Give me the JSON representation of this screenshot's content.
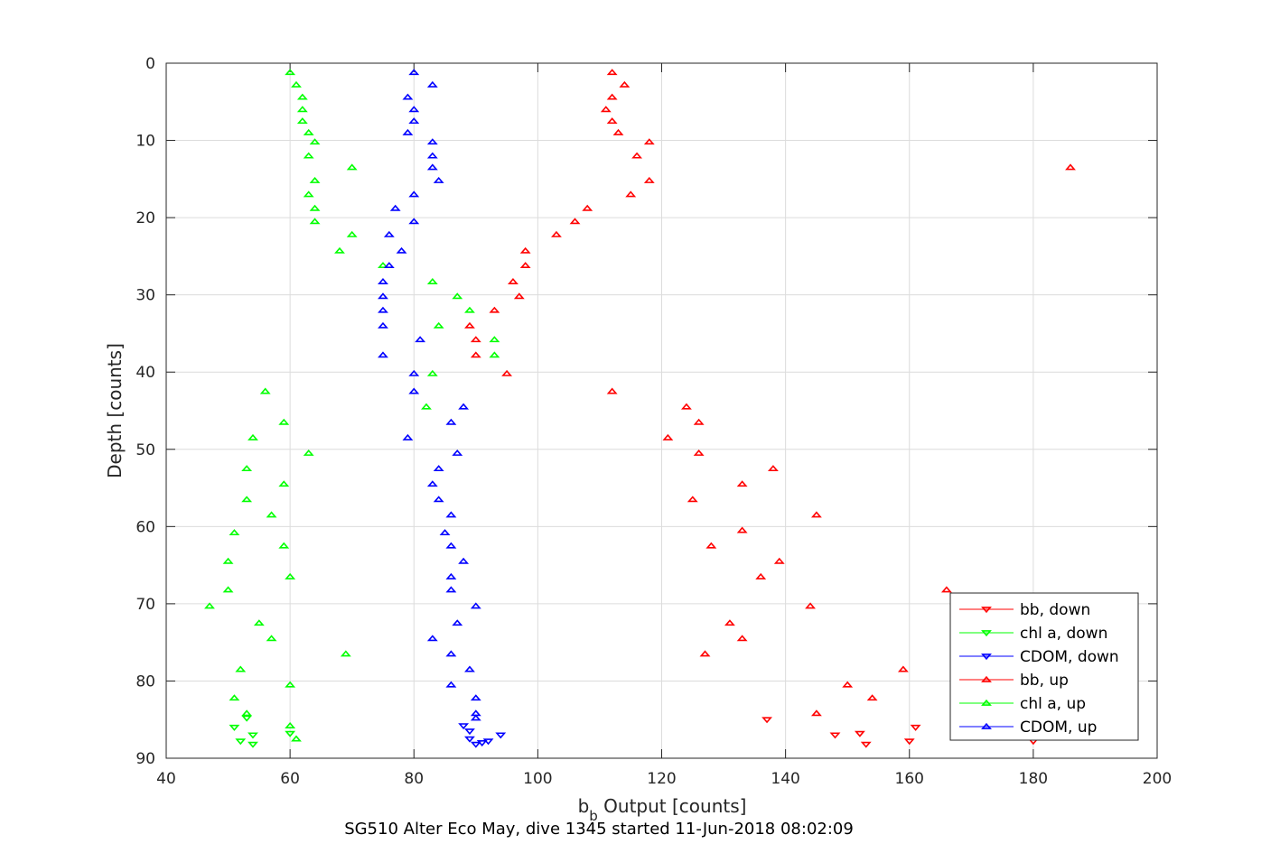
{
  "chart_data": {
    "type": "scatter",
    "xlabel_main": "b",
    "xlabel_sub": "b",
    "xlabel_rest": " Output [counts]",
    "ylabel": "Depth [counts]",
    "caption": "SG510 Alter Eco May, dive 1345 started 11-Jun-2018 08:02:09",
    "xlim": [
      40,
      200
    ],
    "ylim": [
      0,
      90
    ],
    "y_reversed": true,
    "grid": true,
    "legend_position": "bottom-right",
    "xticks": [
      40,
      60,
      80,
      100,
      120,
      140,
      160,
      180,
      200
    ],
    "yticks": [
      0,
      10,
      20,
      30,
      40,
      50,
      60,
      70,
      80,
      90
    ],
    "series": [
      {
        "name": "bb, down",
        "color": "#ff0000",
        "marker": "triangle-down",
        "points": [
          [
            137,
            85
          ],
          [
            148,
            87
          ],
          [
            152,
            86.8
          ],
          [
            153,
            88.2
          ],
          [
            160,
            87.8
          ],
          [
            161,
            86
          ],
          [
            180,
            87.8
          ]
        ]
      },
      {
        "name": "chl a, down",
        "color": "#00ff00",
        "marker": "triangle-down",
        "points": [
          [
            51,
            86
          ],
          [
            52,
            87.8
          ],
          [
            53,
            84.8
          ],
          [
            54,
            87
          ],
          [
            54,
            88.2
          ],
          [
            60,
            86.8
          ]
        ]
      },
      {
        "name": "CDOM, down",
        "color": "#0000ff",
        "marker": "triangle-down",
        "points": [
          [
            88,
            85.8
          ],
          [
            89,
            86.5
          ],
          [
            89,
            87.5
          ],
          [
            90,
            88.2
          ],
          [
            91,
            88
          ],
          [
            92,
            87.8
          ],
          [
            94,
            87
          ]
        ]
      },
      {
        "name": "bb, up",
        "color": "#ff0000",
        "marker": "triangle-up",
        "points": [
          [
            112,
            1.2
          ],
          [
            114,
            2.8
          ],
          [
            112,
            4.4
          ],
          [
            111,
            6
          ],
          [
            112,
            7.5
          ],
          [
            113,
            9
          ],
          [
            118,
            10.2
          ],
          [
            116,
            12
          ],
          [
            186,
            13.5
          ],
          [
            118,
            15.2
          ],
          [
            115,
            17
          ],
          [
            108,
            18.8
          ],
          [
            106,
            20.5
          ],
          [
            103,
            22.2
          ],
          [
            98,
            24.3
          ],
          [
            98,
            26.2
          ],
          [
            96,
            28.3
          ],
          [
            97,
            30.2
          ],
          [
            93,
            32
          ],
          [
            89,
            34
          ],
          [
            90,
            35.8
          ],
          [
            90,
            37.8
          ],
          [
            95,
            40.2
          ],
          [
            112,
            42.5
          ],
          [
            124,
            44.5
          ],
          [
            126,
            46.5
          ],
          [
            121,
            48.5
          ],
          [
            126,
            50.5
          ],
          [
            138,
            52.5
          ],
          [
            133,
            54.5
          ],
          [
            125,
            56.5
          ],
          [
            145,
            58.5
          ],
          [
            133,
            60.5
          ],
          [
            128,
            62.5
          ],
          [
            139,
            64.5
          ],
          [
            136,
            66.5
          ],
          [
            166,
            68.2
          ],
          [
            144,
            70.3
          ],
          [
            131,
            72.5
          ],
          [
            133,
            74.5
          ],
          [
            127,
            76.5
          ],
          [
            159,
            78.5
          ],
          [
            150,
            80.5
          ],
          [
            154,
            82.2
          ],
          [
            145,
            84.2
          ]
        ]
      },
      {
        "name": "chl a, up",
        "color": "#00ff00",
        "marker": "triangle-up",
        "points": [
          [
            60,
            1.2
          ],
          [
            61,
            2.8
          ],
          [
            62,
            4.4
          ],
          [
            62,
            6
          ],
          [
            62,
            7.5
          ],
          [
            63,
            9
          ],
          [
            64,
            10.2
          ],
          [
            63,
            12
          ],
          [
            70,
            13.5
          ],
          [
            64,
            15.2
          ],
          [
            63,
            17
          ],
          [
            64,
            18.8
          ],
          [
            64,
            20.5
          ],
          [
            70,
            22.2
          ],
          [
            68,
            24.3
          ],
          [
            75,
            26.2
          ],
          [
            83,
            28.3
          ],
          [
            87,
            30.2
          ],
          [
            89,
            32
          ],
          [
            84,
            34
          ],
          [
            93,
            35.8
          ],
          [
            93,
            37.8
          ],
          [
            83,
            40.2
          ],
          [
            56,
            42.5
          ],
          [
            82,
            44.5
          ],
          [
            59,
            46.5
          ],
          [
            54,
            48.5
          ],
          [
            63,
            50.5
          ],
          [
            53,
            52.5
          ],
          [
            59,
            54.5
          ],
          [
            53,
            56.5
          ],
          [
            57,
            58.5
          ],
          [
            51,
            60.8
          ],
          [
            59,
            62.5
          ],
          [
            50,
            64.5
          ],
          [
            60,
            66.5
          ],
          [
            50,
            68.2
          ],
          [
            47,
            70.3
          ],
          [
            55,
            72.5
          ],
          [
            57,
            74.5
          ],
          [
            69,
            76.5
          ],
          [
            52,
            78.5
          ],
          [
            60,
            80.5
          ],
          [
            51,
            82.2
          ],
          [
            53,
            84.2
          ],
          [
            60,
            85.8
          ],
          [
            61,
            87.5
          ]
        ]
      },
      {
        "name": "CDOM, up",
        "color": "#0000ff",
        "marker": "triangle-up",
        "points": [
          [
            80,
            1.2
          ],
          [
            83,
            2.8
          ],
          [
            79,
            4.4
          ],
          [
            80,
            6
          ],
          [
            80,
            7.5
          ],
          [
            79,
            9
          ],
          [
            83,
            10.2
          ],
          [
            83,
            12
          ],
          [
            83,
            13.5
          ],
          [
            84,
            15.2
          ],
          [
            80,
            17
          ],
          [
            77,
            18.8
          ],
          [
            80,
            20.5
          ],
          [
            76,
            22.2
          ],
          [
            78,
            24.3
          ],
          [
            76,
            26.2
          ],
          [
            75,
            28.3
          ],
          [
            75,
            30.2
          ],
          [
            75,
            32
          ],
          [
            75,
            34
          ],
          [
            81,
            35.8
          ],
          [
            75,
            37.8
          ],
          [
            80,
            40.2
          ],
          [
            80,
            42.5
          ],
          [
            88,
            44.5
          ],
          [
            86,
            46.5
          ],
          [
            79,
            48.5
          ],
          [
            87,
            50.5
          ],
          [
            84,
            52.5
          ],
          [
            83,
            54.5
          ],
          [
            84,
            56.5
          ],
          [
            86,
            58.5
          ],
          [
            85,
            60.8
          ],
          [
            86,
            62.5
          ],
          [
            88,
            64.5
          ],
          [
            86,
            66.5
          ],
          [
            86,
            68.2
          ],
          [
            90,
            70.3
          ],
          [
            87,
            72.5
          ],
          [
            83,
            74.5
          ],
          [
            86,
            76.5
          ],
          [
            89,
            78.5
          ],
          [
            86,
            80.5
          ],
          [
            90,
            82.2
          ],
          [
            90,
            84.2
          ],
          [
            90,
            84.8
          ]
        ]
      }
    ]
  }
}
